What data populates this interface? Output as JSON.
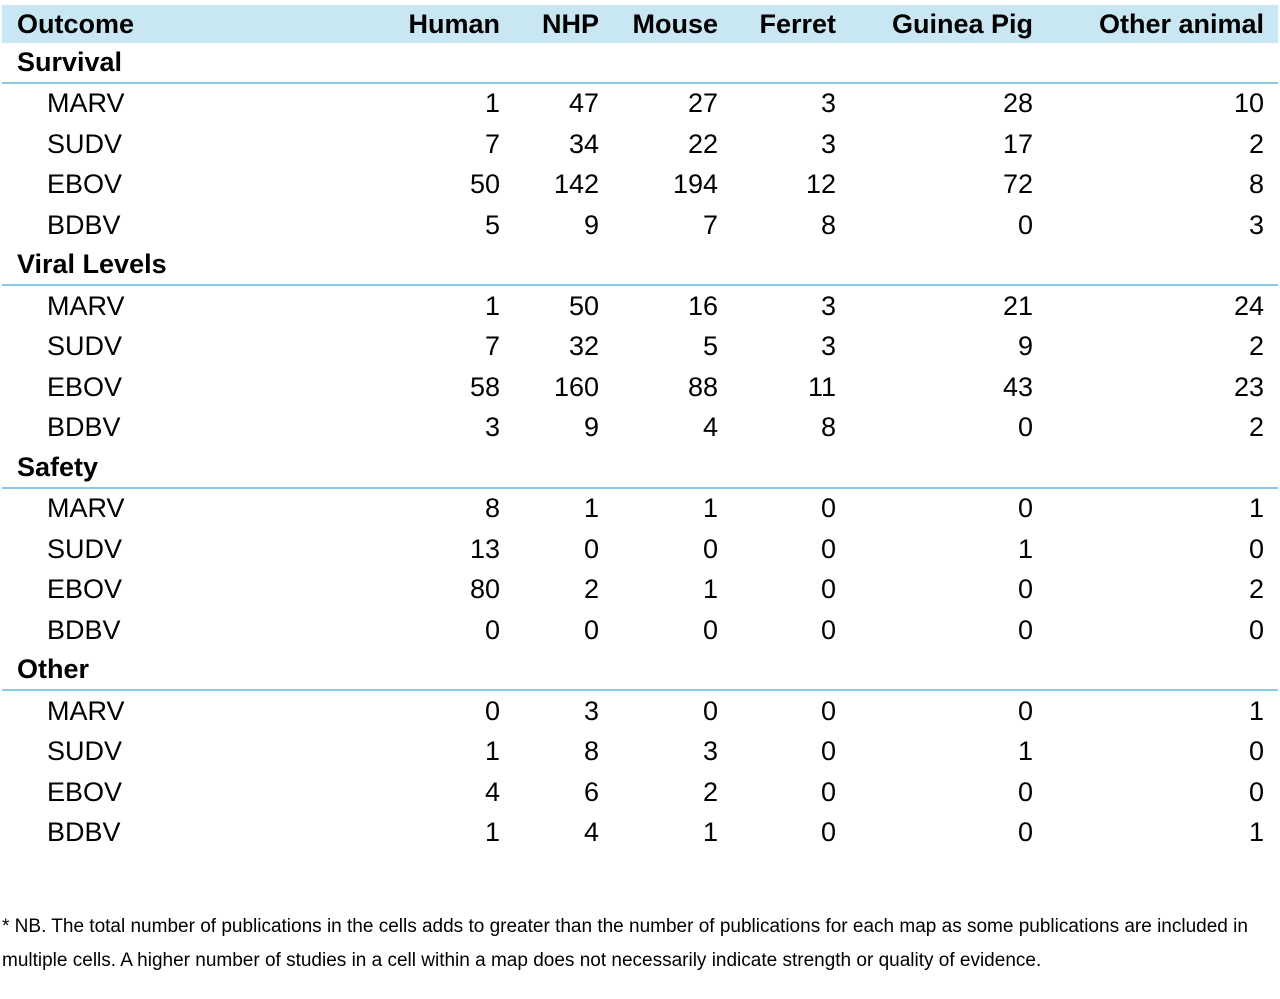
{
  "table": {
    "columns": [
      "Outcome",
      "Human",
      "NHP",
      "Mouse",
      "Ferret",
      "Guinea Pig",
      "Other animal"
    ],
    "sections": [
      {
        "name": "Survival",
        "rows": [
          {
            "label": "MARV",
            "values": [
              "1",
              "47",
              "27",
              "3",
              "28",
              "10"
            ]
          },
          {
            "label": "SUDV",
            "values": [
              "7",
              "34",
              "22",
              "3",
              "17",
              "2"
            ]
          },
          {
            "label": "EBOV",
            "values": [
              "50",
              "142",
              "194",
              "12",
              "72",
              "8"
            ]
          },
          {
            "label": "BDBV",
            "values": [
              "5",
              "9",
              "7",
              "8",
              "0",
              "3"
            ]
          }
        ]
      },
      {
        "name": "Viral Levels",
        "rows": [
          {
            "label": "MARV",
            "values": [
              "1",
              "50",
              "16",
              "3",
              "21",
              "24"
            ]
          },
          {
            "label": "SUDV",
            "values": [
              "7",
              "32",
              "5",
              "3",
              "9",
              "2"
            ]
          },
          {
            "label": "EBOV",
            "values": [
              "58",
              "160",
              "88",
              "11",
              "43",
              "23"
            ]
          },
          {
            "label": "BDBV",
            "values": [
              "3",
              "9",
              "4",
              "8",
              "0",
              "2"
            ]
          }
        ]
      },
      {
        "name": "Safety",
        "rows": [
          {
            "label": "MARV",
            "values": [
              "8",
              "1",
              "1",
              "0",
              "0",
              "1"
            ]
          },
          {
            "label": "SUDV",
            "values": [
              "13",
              "0",
              "0",
              "0",
              "1",
              "0"
            ]
          },
          {
            "label": "EBOV",
            "values": [
              "80",
              "2",
              "1",
              "0",
              "0",
              "2"
            ]
          },
          {
            "label": "BDBV",
            "values": [
              "0",
              "0",
              "0",
              "0",
              "0",
              "0"
            ]
          }
        ]
      },
      {
        "name": "Other",
        "rows": [
          {
            "label": "MARV",
            "values": [
              "0",
              "3",
              "0",
              "0",
              "0",
              "1"
            ]
          },
          {
            "label": "SUDV",
            "values": [
              "1",
              "8",
              "3",
              "0",
              "1",
              "0"
            ]
          },
          {
            "label": "EBOV",
            "values": [
              "4",
              "6",
              "2",
              "0",
              "0",
              "0"
            ]
          },
          {
            "label": "BDBV",
            "values": [
              "1",
              "4",
              "1",
              "0",
              "0",
              "1"
            ]
          }
        ]
      }
    ]
  },
  "footnote": "* NB. The total number of publications in the cells adds to greater than the number of publications for each map as some publications are included in multiple cells. A higher number of studies in a cell within a map does not necessarily indicate strength or quality of evidence.",
  "colors": {
    "header_bg": "#c9e6f3",
    "section_rule": "#8ccbe4"
  }
}
